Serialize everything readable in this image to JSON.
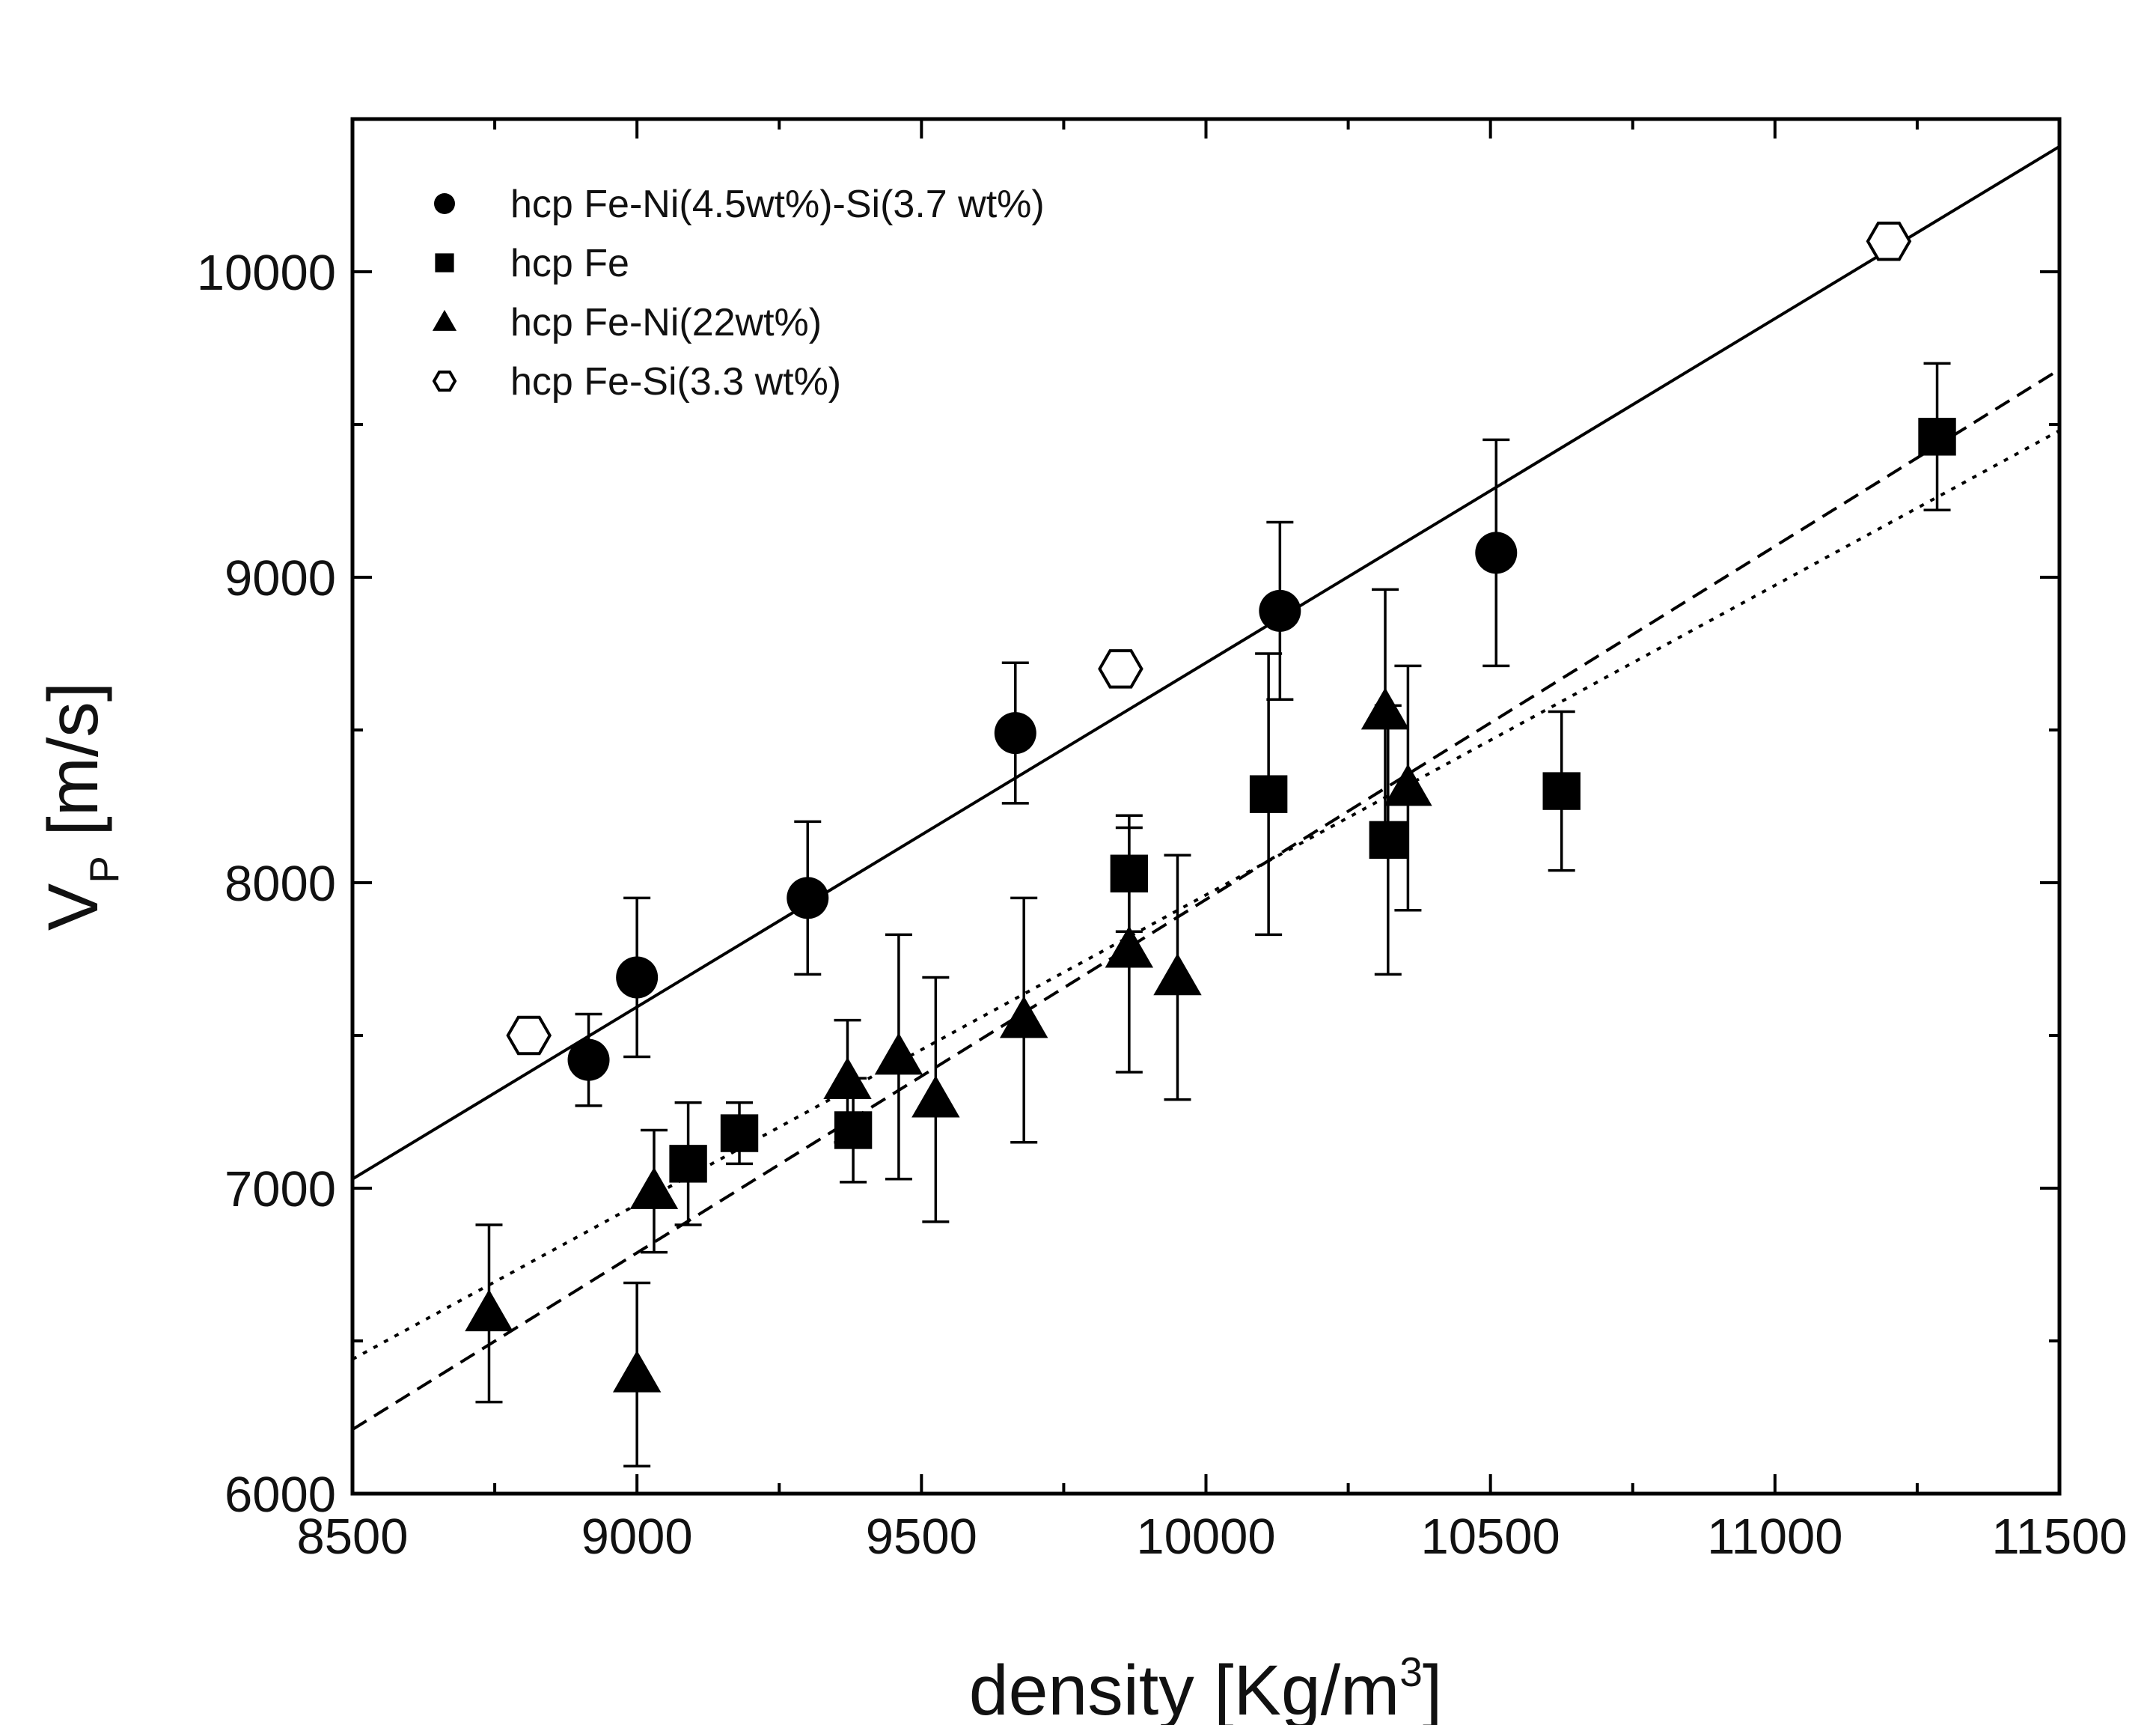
{
  "chart_data": {
    "type": "scatter",
    "x_label": [
      "density [Kg/m",
      "3",
      "]"
    ],
    "y_label": [
      "V",
      "P",
      " [m/s]"
    ],
    "xlim": [
      8500,
      11500
    ],
    "ylim": [
      6000,
      10500
    ],
    "xticks": [
      8500,
      9000,
      9500,
      10000,
      10500,
      11000,
      11500
    ],
    "yticks": [
      6000,
      7000,
      8000,
      9000,
      10000
    ],
    "xminorticks": [
      8750,
      9250,
      9750,
      10250,
      10750,
      11250
    ],
    "yminorticks": [
      6500,
      7500,
      8500,
      9500,
      10500
    ],
    "series": [
      {
        "name": "hcp Fe-Ni(4.5wt%)-Si(3.7 wt%)",
        "marker": "circle",
        "color": "#000000",
        "x": [
          8915,
          9000,
          9300,
          9665,
          10130,
          10510
        ],
        "values": [
          7420,
          7690,
          7950,
          8490,
          8890,
          9080
        ],
        "errors": [
          150,
          260,
          250,
          230,
          290,
          370
        ]
      },
      {
        "name": "hcp Fe",
        "marker": "square",
        "color": "#000000",
        "x": [
          9090,
          9180,
          9380,
          9865,
          10110,
          10320,
          10625,
          11285
        ],
        "values": [
          7080,
          7180,
          7190,
          8030,
          8290,
          8140,
          8300,
          9460
        ],
        "errors": [
          200,
          100,
          170,
          190,
          460,
          440,
          260,
          240
        ]
      },
      {
        "name": "hcp Fe-Ni(22wt%)",
        "marker": "triangle",
        "color": "#000000",
        "x": [
          8740,
          9000,
          9030,
          9370,
          9460,
          9525,
          9680,
          9865,
          9950,
          10315,
          10355
        ],
        "values": [
          6590,
          6390,
          6990,
          7350,
          7430,
          7290,
          7550,
          7780,
          7690,
          8560,
          8310
        ],
        "errors": [
          290,
          300,
          200,
          200,
          400,
          400,
          400,
          400,
          400,
          400,
          400
        ]
      },
      {
        "name": "hcp Fe-Si(3.3 wt%)",
        "marker": "hexagon",
        "color": "#000000",
        "x": [
          8810,
          9850,
          11200
        ],
        "values": [
          7500,
          8700,
          10100
        ]
      }
    ],
    "fit_lines": [
      {
        "dash": "solid",
        "x": [
          8500,
          11500
        ],
        "values": [
          7030,
          10410
        ]
      },
      {
        "dash": "dashed",
        "x": [
          8500,
          11500
        ],
        "values": [
          6210,
          9680
        ]
      },
      {
        "dash": "dotted",
        "x": [
          8500,
          11500
        ],
        "values": [
          6440,
          9480
        ]
      }
    ]
  }
}
